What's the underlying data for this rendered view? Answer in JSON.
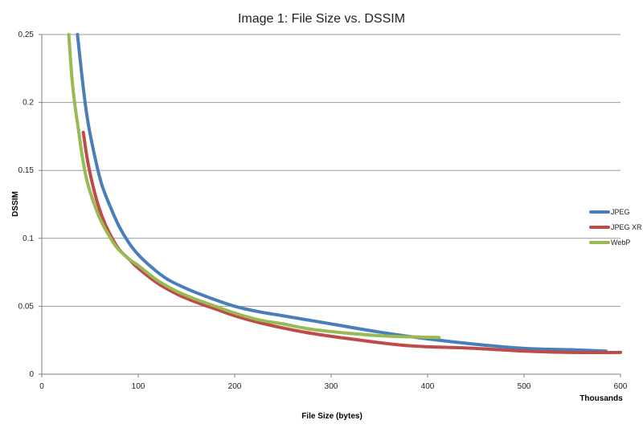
{
  "chart_data": {
    "type": "line",
    "title": "Image 1: File Size vs. DSSIM",
    "xlabel": "File Size (bytes)",
    "ylabel": "DSSIM",
    "x_display_unit": "Thousands",
    "xlim": [
      0,
      600
    ],
    "ylim": [
      0,
      0.25
    ],
    "x_ticks": [
      0,
      100,
      200,
      300,
      400,
      500,
      600
    ],
    "y_ticks": [
      0,
      0.05,
      0.1,
      0.15,
      0.2,
      0.25
    ],
    "x_tick_labels": [
      "0",
      "100",
      "200",
      "300",
      "400",
      "500",
      "600"
    ],
    "y_tick_labels": [
      "0",
      "0.05",
      "0.1",
      "0.15",
      "0.2",
      "0.25"
    ],
    "grid": "horizontal",
    "legend_position": "right",
    "series": [
      {
        "name": "JPEG",
        "color": "#4a7ebb",
        "x": [
          37,
          40,
          44,
          48,
          55,
          62,
          70,
          80,
          90,
          100,
          115,
          130,
          150,
          175,
          200,
          225,
          250,
          300,
          350,
          400,
          450,
          500,
          550,
          585
        ],
        "y": [
          0.25,
          0.23,
          0.205,
          0.185,
          0.16,
          0.14,
          0.125,
          0.109,
          0.097,
          0.088,
          0.078,
          0.07,
          0.063,
          0.056,
          0.05,
          0.046,
          0.043,
          0.037,
          0.031,
          0.026,
          0.022,
          0.019,
          0.018,
          0.017
        ]
      },
      {
        "name": "JPEG XR",
        "color": "#be4b48",
        "x": [
          43,
          48,
          55,
          62,
          70,
          80,
          90,
          100,
          120,
          140,
          160,
          180,
          200,
          220,
          250,
          280,
          320,
          380,
          450,
          500,
          550,
          600
        ],
        "y": [
          0.178,
          0.155,
          0.133,
          0.117,
          0.104,
          0.092,
          0.085,
          0.078,
          0.067,
          0.059,
          0.053,
          0.048,
          0.043,
          0.039,
          0.034,
          0.03,
          0.026,
          0.021,
          0.019,
          0.017,
          0.016,
          0.016
        ]
      },
      {
        "name": "WebP",
        "color": "#98b954",
        "x": [
          28,
          31,
          34,
          38,
          42,
          47,
          53,
          60,
          68,
          78,
          90,
          100,
          120,
          140,
          160,
          180,
          200,
          225,
          250,
          280,
          320,
          360,
          412
        ],
        "y": [
          0.25,
          0.22,
          0.2,
          0.18,
          0.16,
          0.142,
          0.128,
          0.115,
          0.104,
          0.093,
          0.085,
          0.08,
          0.069,
          0.061,
          0.055,
          0.05,
          0.045,
          0.04,
          0.037,
          0.033,
          0.03,
          0.028,
          0.027
        ]
      }
    ]
  }
}
